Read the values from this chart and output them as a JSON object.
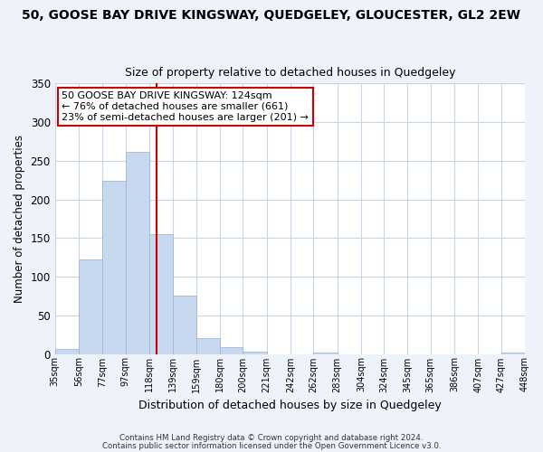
{
  "title": "50, GOOSE BAY DRIVE KINGSWAY, QUEDGELEY, GLOUCESTER, GL2 2EW",
  "subtitle": "Size of property relative to detached houses in Quedgeley",
  "xlabel": "Distribution of detached houses by size in Quedgeley",
  "ylabel": "Number of detached properties",
  "bar_color": "#c8d8ee",
  "bar_edge_color": "#a0b8d8",
  "marker_line_color": "#cc0000",
  "marker_value": 124,
  "bin_edges": [
    35,
    56,
    77,
    97,
    118,
    139,
    159,
    180,
    200,
    221,
    242,
    262,
    283,
    304,
    324,
    345,
    365,
    386,
    407,
    427,
    448
  ],
  "bin_labels": [
    "35sqm",
    "56sqm",
    "77sqm",
    "97sqm",
    "118sqm",
    "139sqm",
    "159sqm",
    "180sqm",
    "200sqm",
    "221sqm",
    "242sqm",
    "262sqm",
    "283sqm",
    "304sqm",
    "324sqm",
    "345sqm",
    "365sqm",
    "386sqm",
    "407sqm",
    "427sqm",
    "448sqm"
  ],
  "bar_heights": [
    6,
    122,
    224,
    262,
    155,
    76,
    21,
    9,
    3,
    0,
    0,
    2,
    0,
    0,
    0,
    0,
    0,
    0,
    0,
    2
  ],
  "annotation_title": "50 GOOSE BAY DRIVE KINGSWAY: 124sqm",
  "annotation_line1": "← 76% of detached houses are smaller (661)",
  "annotation_line2": "23% of semi-detached houses are larger (201) →",
  "ylim": [
    0,
    350
  ],
  "yticks": [
    0,
    50,
    100,
    150,
    200,
    250,
    300,
    350
  ],
  "footer1": "Contains HM Land Registry data © Crown copyright and database right 2024.",
  "footer2": "Contains public sector information licensed under the Open Government Licence v3.0.",
  "bg_color": "#eef2fb",
  "plot_bg_color": "#ffffff",
  "grid_color": "#c8d4e8"
}
